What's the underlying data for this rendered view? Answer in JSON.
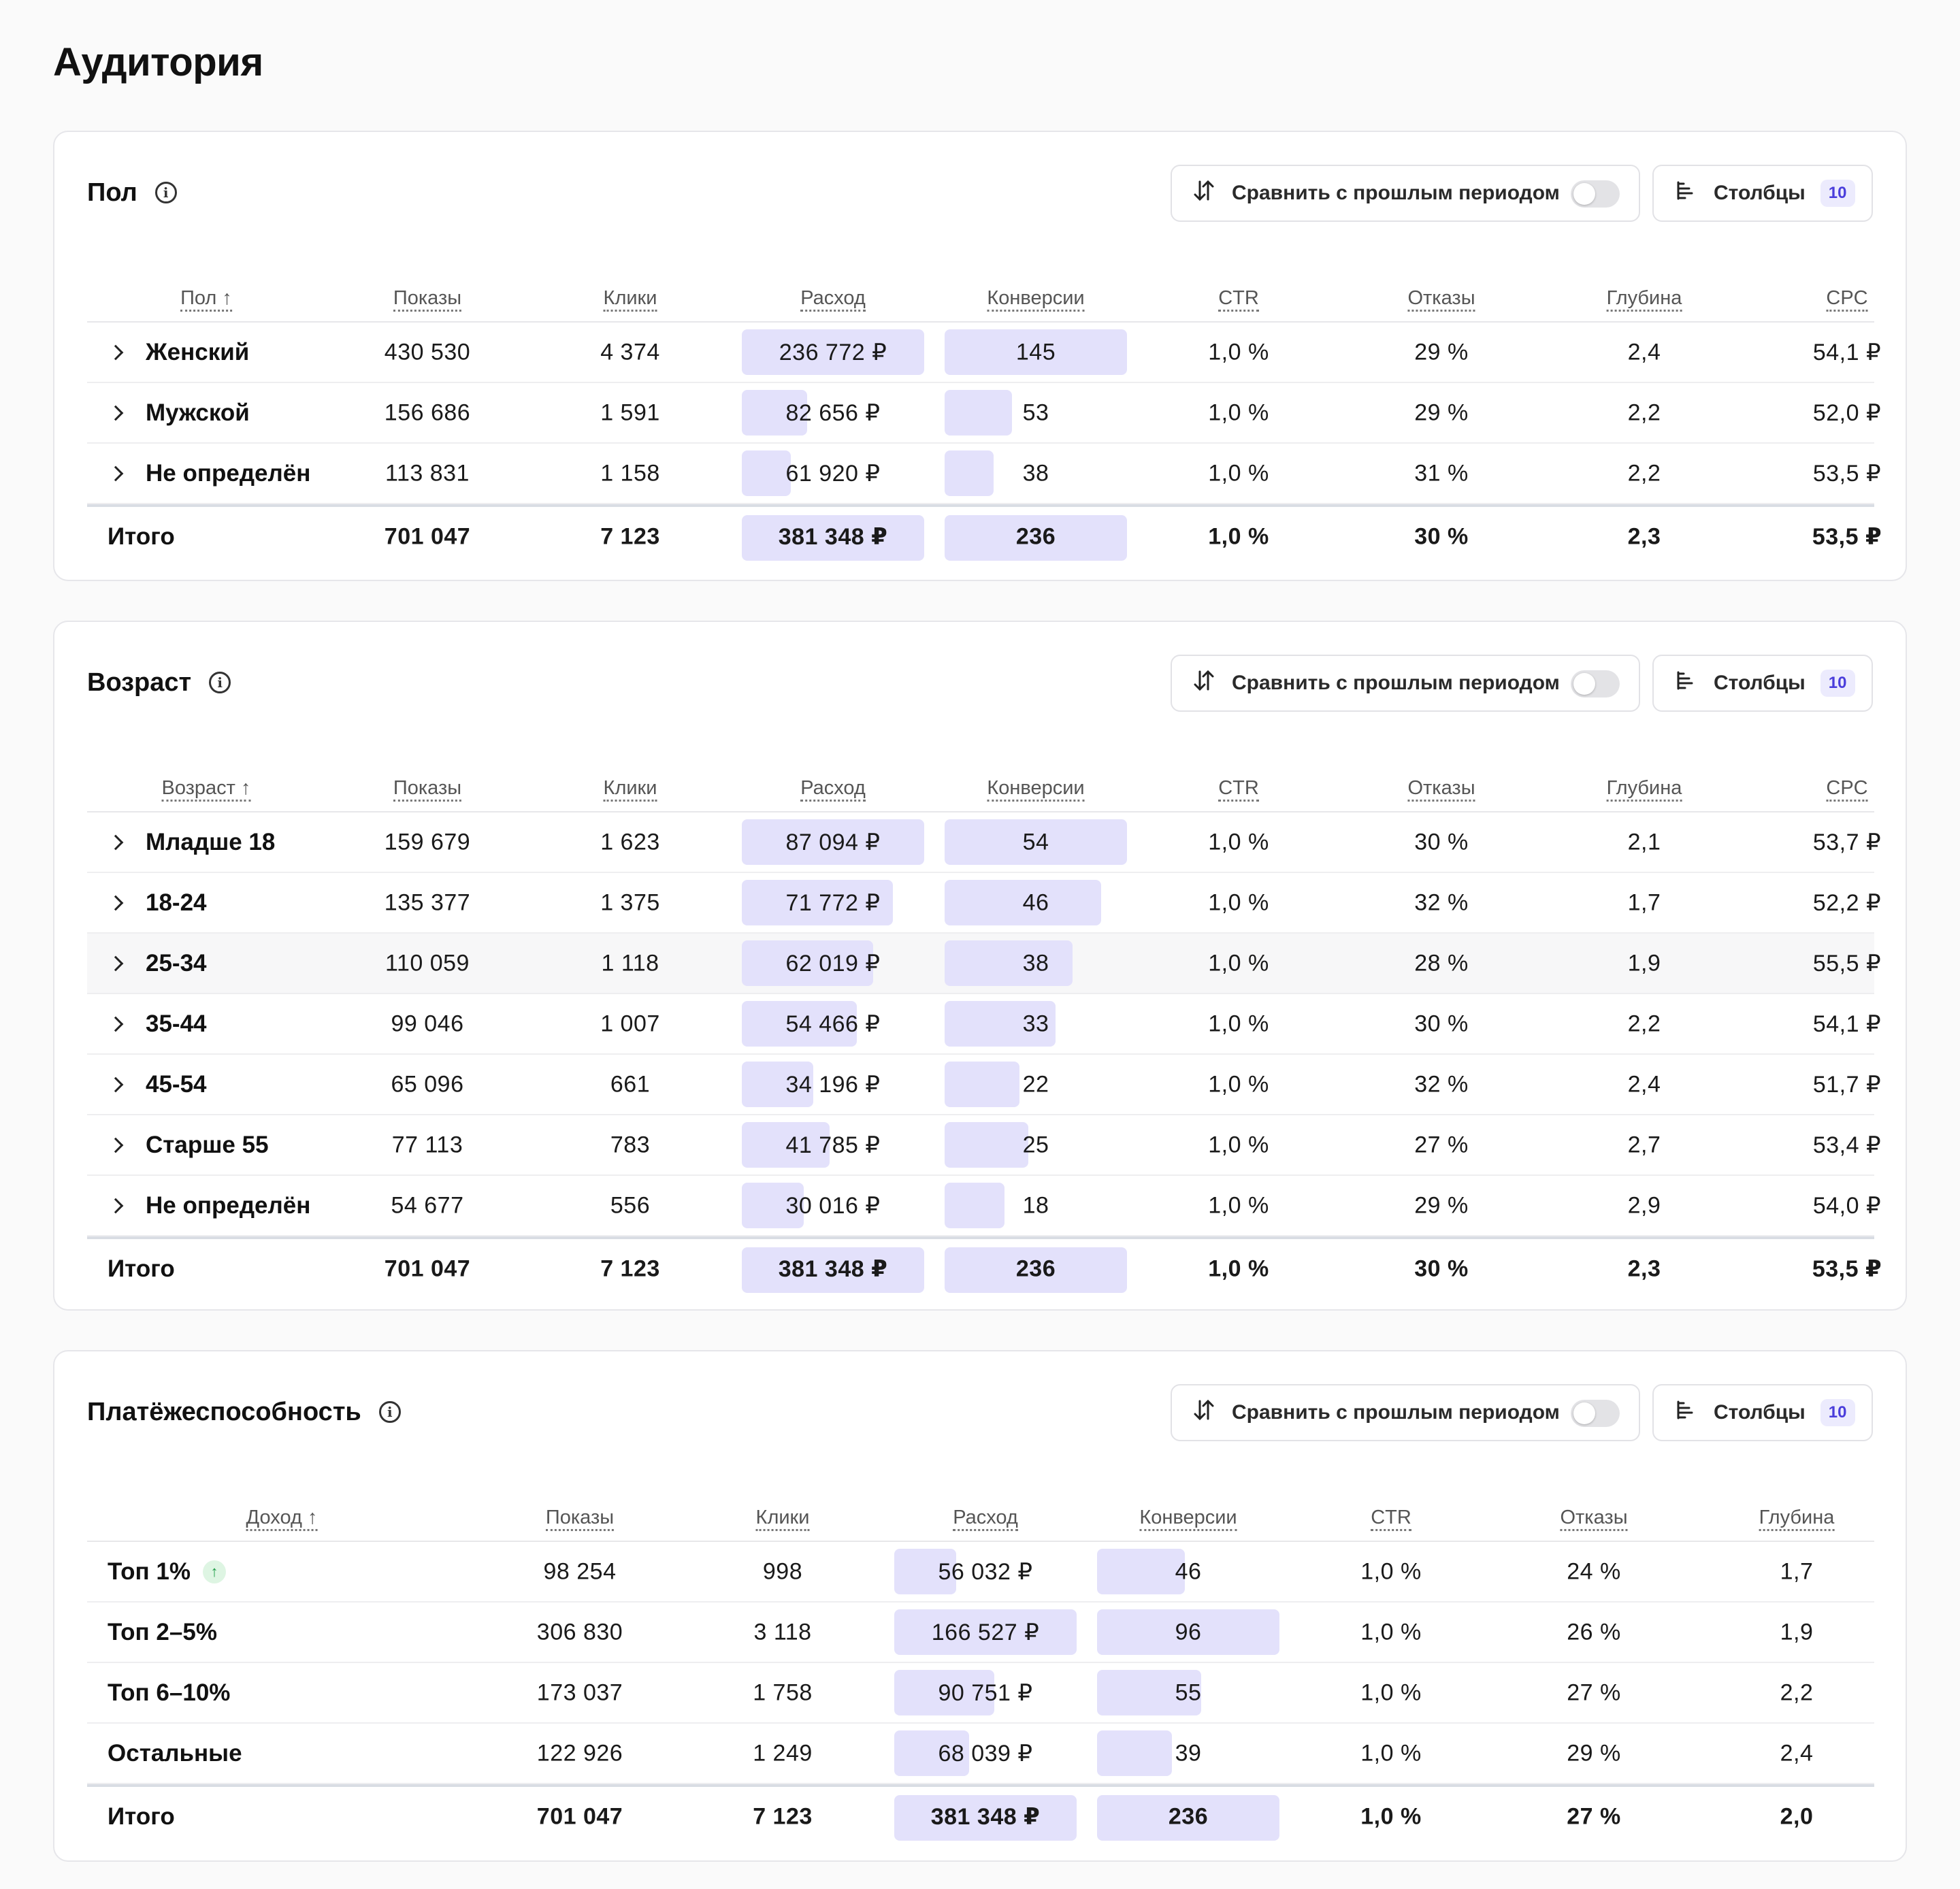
{
  "page_title": "Аудитория",
  "common": {
    "compare_label": "Сравнить с прошлым периодом",
    "columns_label": "Столбцы",
    "columns_count": "10",
    "total_label": "Итого",
    "bar_color": "#e3e1fb"
  },
  "sections": [
    {
      "title": "Пол",
      "headers": [
        "Пол ↑",
        "Показы",
        "Клики",
        "Расход",
        "Конверсии",
        "CTR",
        "Отказы",
        "Глубина",
        "CPC"
      ],
      "rows": [
        {
          "label": "Женский",
          "values": [
            "430 530",
            "4 374",
            "236 772 ₽",
            "145",
            "1,0 %",
            "29 %",
            "2,4",
            "54,1 ₽"
          ],
          "spend_share": 1.0,
          "conv_share": 1.0
        },
        {
          "label": "Мужской",
          "values": [
            "156 686",
            "1 591",
            "82 656 ₽",
            "53",
            "1,0 %",
            "29 %",
            "2,2",
            "52,0 ₽"
          ],
          "spend_share": 0.36,
          "conv_share": 0.37
        },
        {
          "label": "Не определён",
          "values": [
            "113 831",
            "1 158",
            "61 920 ₽",
            "38",
            "1,0 %",
            "31 %",
            "2,2",
            "53,5 ₽"
          ],
          "spend_share": 0.27,
          "conv_share": 0.27
        }
      ],
      "total": [
        "701 047",
        "7 123",
        "381 348 ₽",
        "236",
        "1,0 %",
        "30 %",
        "2,3",
        "53,5 ₽"
      ]
    },
    {
      "title": "Возраст",
      "headers": [
        "Возраст ↑",
        "Показы",
        "Клики",
        "Расход",
        "Конверсии",
        "CTR",
        "Отказы",
        "Глубина",
        "CPC"
      ],
      "rows": [
        {
          "label": "Младше 18",
          "values": [
            "159 679",
            "1 623",
            "87 094 ₽",
            "54",
            "1,0 %",
            "30 %",
            "2,1",
            "53,7 ₽"
          ],
          "spend_share": 1.0,
          "conv_share": 1.0
        },
        {
          "label": "18-24",
          "values": [
            "135 377",
            "1 375",
            "71 772 ₽",
            "46",
            "1,0 %",
            "32 %",
            "1,7",
            "52,2 ₽"
          ],
          "spend_share": 0.83,
          "conv_share": 0.86
        },
        {
          "label": "25-34",
          "values": [
            "110 059",
            "1 118",
            "62 019 ₽",
            "38",
            "1,0 %",
            "28 %",
            "1,9",
            "55,5 ₽"
          ],
          "spend_share": 0.72,
          "conv_share": 0.7
        },
        {
          "label": "35-44",
          "values": [
            "99 046",
            "1 007",
            "54 466 ₽",
            "33",
            "1,0 %",
            "30 %",
            "2,2",
            "54,1 ₽"
          ],
          "spend_share": 0.63,
          "conv_share": 0.61
        },
        {
          "label": "45-54",
          "values": [
            "65 096",
            "661",
            "34 196 ₽",
            "22",
            "1,0 %",
            "32 %",
            "2,4",
            "51,7 ₽"
          ],
          "spend_share": 0.39,
          "conv_share": 0.41
        },
        {
          "label": "Старше 55",
          "values": [
            "77 113",
            "783",
            "41 785 ₽",
            "25",
            "1,0 %",
            "27 %",
            "2,7",
            "53,4 ₽"
          ],
          "spend_share": 0.48,
          "conv_share": 0.46
        },
        {
          "label": "Не определён",
          "values": [
            "54 677",
            "556",
            "30 016 ₽",
            "18",
            "1,0 %",
            "29 %",
            "2,9",
            "54,0 ₽"
          ],
          "spend_share": 0.34,
          "conv_share": 0.33
        }
      ],
      "total": [
        "701 047",
        "7 123",
        "381 348 ₽",
        "236",
        "1,0 %",
        "30 %",
        "2,3",
        "53,5 ₽"
      ]
    },
    {
      "title": "Платёжеспособность",
      "headers": [
        "Доход ↑",
        "Показы",
        "Клики",
        "Расход",
        "Конверсии",
        "CTR",
        "Отказы",
        "Глубина"
      ],
      "rows": [
        {
          "label": "Топ 1%",
          "badge": "up-arrow-icon",
          "values": [
            "98 254",
            "998",
            "56 032 ₽",
            "46",
            "1,0 %",
            "24 %",
            "1,7"
          ],
          "spend_share": 0.34,
          "conv_share": 0.48
        },
        {
          "label": "Топ 2–5%",
          "values": [
            "306 830",
            "3 118",
            "166 527 ₽",
            "96",
            "1,0 %",
            "26 %",
            "1,9"
          ],
          "spend_share": 1.0,
          "conv_share": 1.0
        },
        {
          "label": "Топ 6–10%",
          "values": [
            "173 037",
            "1 758",
            "90 751 ₽",
            "55",
            "1,0 %",
            "27 %",
            "2,2"
          ],
          "spend_share": 0.55,
          "conv_share": 0.57
        },
        {
          "label": "Остальные",
          "values": [
            "122 926",
            "1 249",
            "68 039 ₽",
            "39",
            "1,0 %",
            "29 %",
            "2,4"
          ],
          "spend_share": 0.41,
          "conv_share": 0.41
        }
      ],
      "total": [
        "701 047",
        "7 123",
        "381 348 ₽",
        "236",
        "1,0 %",
        "27 %",
        "2,0"
      ]
    }
  ]
}
